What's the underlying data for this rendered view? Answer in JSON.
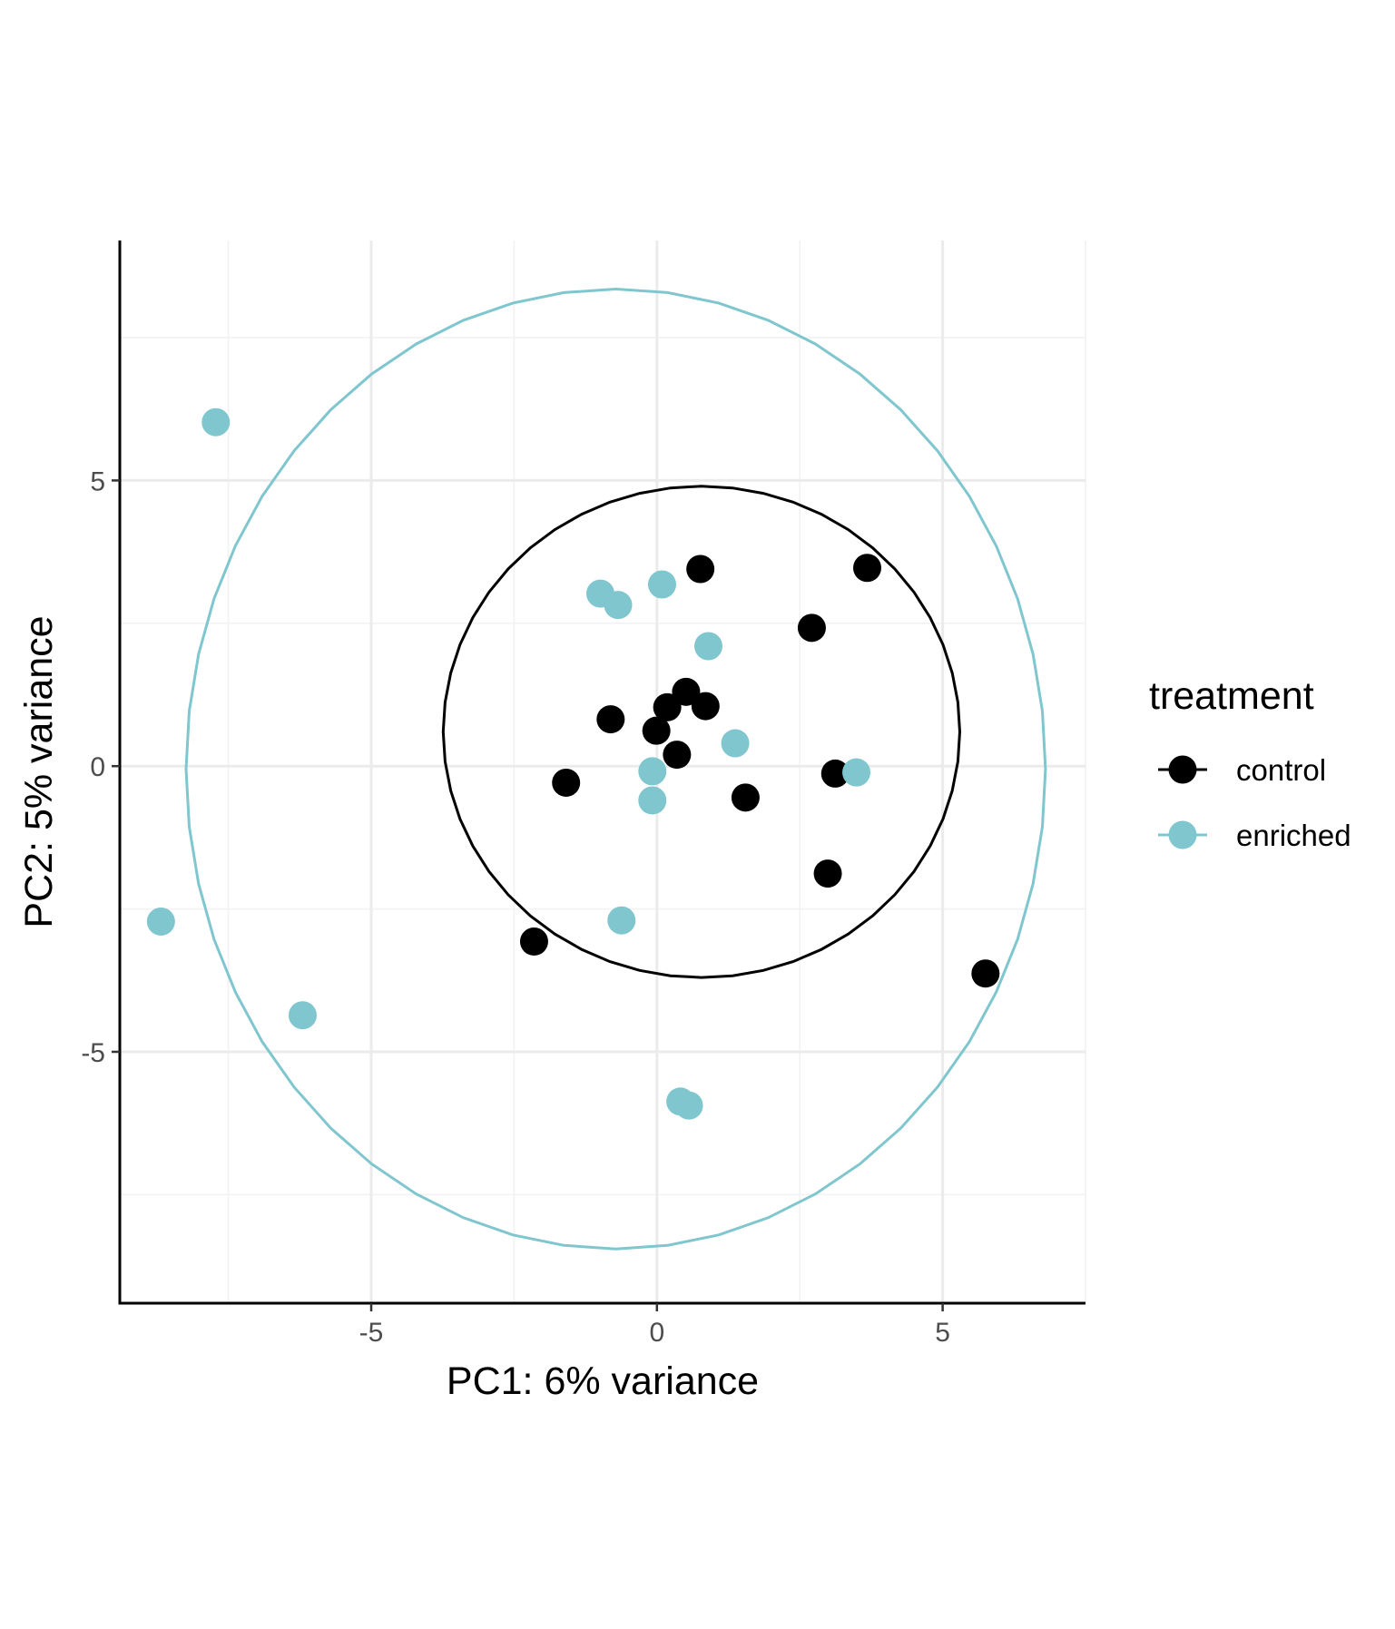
{
  "chart_data": {
    "type": "scatter",
    "xlabel": "PC1: 6% variance",
    "ylabel": "PC2: 5% variance",
    "xlim": [
      -9.4,
      7.5
    ],
    "ylim": [
      -9.4,
      9.2
    ],
    "x_ticks": [
      -5,
      0,
      5
    ],
    "x_tick_labels": [
      "-5",
      "0",
      "5"
    ],
    "y_ticks": [
      -5,
      0,
      5
    ],
    "y_tick_labels": [
      "-5",
      "0",
      "5"
    ],
    "grid": true,
    "legend": {
      "title": "treatment",
      "position": "right",
      "entries": [
        "control",
        "enriched"
      ]
    },
    "series": [
      {
        "name": "control",
        "color": "#000000",
        "points": [
          [
            0.76,
            3.45
          ],
          [
            3.68,
            3.47
          ],
          [
            2.71,
            2.42
          ],
          [
            0.51,
            1.3
          ],
          [
            0.18,
            1.03
          ],
          [
            0.85,
            1.05
          ],
          [
            -0.81,
            0.82
          ],
          [
            -0.01,
            0.62
          ],
          [
            0.35,
            0.2
          ],
          [
            -1.59,
            -0.29
          ],
          [
            1.55,
            -0.55
          ],
          [
            3.12,
            -0.13
          ],
          [
            2.99,
            -1.88
          ],
          [
            -2.15,
            -3.07
          ],
          [
            5.75,
            -3.63
          ]
        ],
        "ellipse": {
          "cx": 0.78,
          "cy": 0.6,
          "rx": 4.52,
          "ry": 4.3
        }
      },
      {
        "name": "enriched",
        "color": "#7fc6ce",
        "points": [
          [
            -7.72,
            6.02
          ],
          [
            -0.99,
            3.02
          ],
          [
            -0.68,
            2.82
          ],
          [
            0.09,
            3.18
          ],
          [
            0.9,
            2.1
          ],
          [
            1.37,
            0.4
          ],
          [
            -0.08,
            -0.09
          ],
          [
            -0.08,
            -0.6
          ],
          [
            3.49,
            -0.11
          ],
          [
            -0.62,
            -2.7
          ],
          [
            -8.68,
            -2.72
          ],
          [
            -6.2,
            -4.36
          ],
          [
            0.41,
            -5.87
          ],
          [
            0.56,
            -5.94
          ]
        ],
        "ellipse": {
          "cx": -0.72,
          "cy": -0.05,
          "rx": 7.52,
          "ry": 8.4
        }
      }
    ]
  }
}
